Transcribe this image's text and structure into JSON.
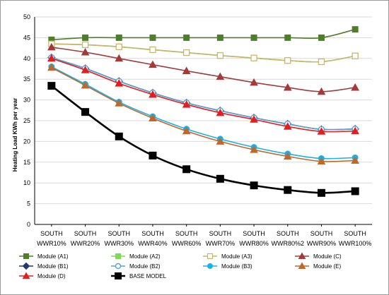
{
  "chart_data": {
    "type": "line",
    "title": "",
    "xlabel": "",
    "ylabel": "Heating Load KWh per year",
    "ylim": [
      0,
      50
    ],
    "yticks": [
      0,
      5,
      10,
      15,
      20,
      25,
      30,
      35,
      40,
      45,
      50
    ],
    "grid": "horizontal",
    "legend_position": "bottom",
    "categories": [
      [
        "SOUTH",
        "WWR10%"
      ],
      [
        "SOUTH",
        "WWR20%"
      ],
      [
        "SOUTH",
        "WWR30%"
      ],
      [
        "SOUTH",
        "WWR40%"
      ],
      [
        "SOUTH",
        "WWR60%"
      ],
      [
        "SOUTH",
        "WWR70%"
      ],
      [
        "SOUTH",
        "WWR80%"
      ],
      [
        "SOUTH",
        "WWR80%2"
      ],
      [
        "SOUTH",
        "WWR90%"
      ],
      [
        "SOUTH",
        "WWR100%"
      ]
    ],
    "series": [
      {
        "name": "Module (A1)",
        "color": "#4f7d2a",
        "marker": "square",
        "values": [
          44.5,
          45,
          45,
          45,
          45,
          45,
          45,
          45,
          45,
          47
        ]
      },
      {
        "name": "Module (A2)",
        "color": "#7ed957",
        "marker": "square",
        "values": [
          43.5,
          43.3,
          42.8,
          42.1,
          41.4,
          40.7,
          40.1,
          39.5,
          39.2,
          40.6
        ]
      },
      {
        "name": "Module (A3)",
        "color": "#c8b46a",
        "marker": "square-open",
        "values": [
          43.5,
          43.3,
          42.8,
          42.1,
          41.4,
          40.7,
          40.1,
          39.5,
          39.2,
          40.6
        ]
      },
      {
        "name": "Module (C)",
        "color": "#a33a3a",
        "marker": "triangle",
        "values": [
          42.7,
          41.5,
          40.0,
          38.5,
          37.0,
          35.6,
          34.2,
          33.0,
          32.0,
          33.0
        ]
      },
      {
        "name": "Module (B1)",
        "color": "#1f3a6b",
        "marker": "diamond",
        "values": [
          40.2,
          37.6,
          34.5,
          31.7,
          29.3,
          27.4,
          25.7,
          24.2,
          22.9,
          23.0
        ]
      },
      {
        "name": "Module (B2)",
        "color": "#5aa0d6",
        "marker": "circle-open",
        "values": [
          40.2,
          37.6,
          34.5,
          31.7,
          29.3,
          27.4,
          25.7,
          24.2,
          22.9,
          23.0
        ]
      },
      {
        "name": "Module (B3)",
        "color": "#1ab0e8",
        "marker": "circle",
        "values": [
          38.0,
          33.8,
          29.5,
          26.0,
          23.0,
          20.6,
          18.6,
          17.0,
          15.9,
          16.1
        ]
      },
      {
        "name": "Module (E)",
        "color": "#c0682a",
        "marker": "triangle",
        "values": [
          37.8,
          33.5,
          29.2,
          25.6,
          22.5,
          20.0,
          18.0,
          16.4,
          15.2,
          15.4
        ]
      },
      {
        "name": "Module (D)",
        "color": "#e02020",
        "marker": "triangle",
        "values": [
          40.0,
          37.2,
          34.0,
          31.3,
          28.9,
          26.9,
          25.3,
          23.6,
          22.4,
          22.5
        ]
      },
      {
        "name": "BASE MODEL",
        "color": "#000000",
        "marker": "square",
        "values": [
          33.4,
          27.1,
          21.2,
          16.6,
          13.3,
          11.0,
          9.4,
          8.3,
          7.6,
          8.0
        ]
      }
    ]
  }
}
